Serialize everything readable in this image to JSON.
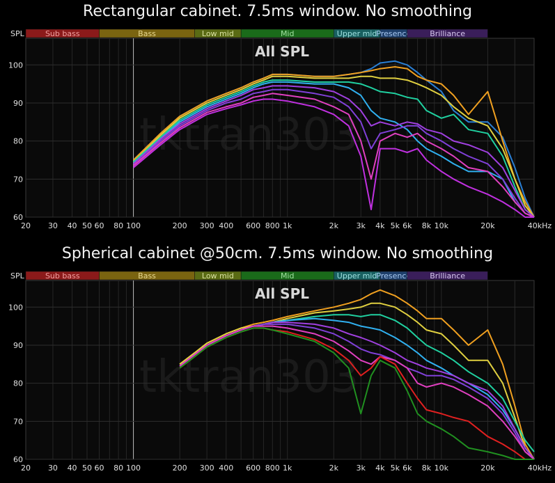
{
  "chart_data": [
    {
      "type": "line",
      "title": "Rectangular cabinet. 7.5ms window. No smoothing",
      "subtitle": "All SPL",
      "ylabel": "SPL",
      "xunit": "40kHz",
      "xscale": "log",
      "xlim": [
        20,
        40000
      ],
      "ylim": [
        60,
        107
      ],
      "grid": true,
      "watermark": "tktran303",
      "bands": [
        {
          "label": "Sub bass",
          "from": 20,
          "to": 60,
          "color": "#8b1a1a"
        },
        {
          "label": "Bass",
          "from": 60,
          "to": 250,
          "color": "#7a6410"
        },
        {
          "label": "Low mid",
          "from": 250,
          "to": 500,
          "color": "#5a6b14"
        },
        {
          "label": "Mid",
          "from": 500,
          "to": 2000,
          "color": "#1a6b1a"
        },
        {
          "label": "Upper mid",
          "from": 2000,
          "to": 4000,
          "color": "#186060"
        },
        {
          "label": "Presence",
          "from": 4000,
          "to": 6000,
          "color": "#1e3f6b"
        },
        {
          "label": "Brilliance",
          "from": 6000,
          "to": 20000,
          "color": "#3a1e5a"
        }
      ],
      "xticks": [
        {
          "v": 20,
          "t": "20"
        },
        {
          "v": 30,
          "t": "30"
        },
        {
          "v": 40,
          "t": "40"
        },
        {
          "v": 50,
          "t": "50"
        },
        {
          "v": 60,
          "t": "60"
        },
        {
          "v": 80,
          "t": "80"
        },
        {
          "v": 100,
          "t": "100"
        },
        {
          "v": 200,
          "t": "200"
        },
        {
          "v": 300,
          "t": "300"
        },
        {
          "v": 400,
          "t": "400"
        },
        {
          "v": 600,
          "t": "600"
        },
        {
          "v": 800,
          "t": "800"
        },
        {
          "v": 1000,
          "t": "1k"
        },
        {
          "v": 2000,
          "t": "2k"
        },
        {
          "v": 3000,
          "t": "3k"
        },
        {
          "v": 4000,
          "t": "4k"
        },
        {
          "v": 5000,
          "t": "5k"
        },
        {
          "v": 6000,
          "t": "6k"
        },
        {
          "v": 8000,
          "t": "8k"
        },
        {
          "v": 10000,
          "t": "10k"
        },
        {
          "v": 20000,
          "t": "20k"
        }
      ],
      "yticks": [
        60,
        70,
        80,
        90,
        100
      ],
      "x": [
        100,
        150,
        200,
        300,
        400,
        500,
        600,
        700,
        800,
        1000,
        1500,
        2000,
        2500,
        3000,
        3500,
        4000,
        5000,
        6000,
        7000,
        8000,
        10000,
        12000,
        15000,
        20000,
        25000,
        30000,
        35000,
        40000
      ],
      "series": [
        {
          "color": "#2a7fd4",
          "values": [
            75,
            82,
            86.5,
            90.5,
            92.5,
            94,
            95.5,
            96.5,
            97.5,
            97.5,
            97,
            97,
            97.5,
            98,
            99,
            100.5,
            101,
            100,
            98,
            96,
            93,
            88,
            85,
            85,
            81,
            73,
            65,
            60
          ]
        },
        {
          "color": "#f0a020",
          "values": [
            75,
            82,
            86.5,
            90.5,
            92.5,
            94,
            95.5,
            96.5,
            97.5,
            97.5,
            97,
            97,
            97.5,
            98,
            98.5,
            99,
            99.5,
            99,
            97,
            96,
            95,
            92,
            87,
            93,
            80,
            70,
            64,
            60
          ]
        },
        {
          "color": "#e0d040",
          "values": [
            74.5,
            81.5,
            86,
            90,
            92,
            93.5,
            95,
            96,
            97,
            97,
            96.5,
            96.5,
            96.5,
            97,
            97,
            96.5,
            96.5,
            96,
            95,
            94,
            92,
            89,
            86,
            84,
            78,
            70,
            63,
            60
          ]
        },
        {
          "color": "#20d0a0",
          "values": [
            74.5,
            81,
            85.5,
            89.5,
            91.5,
            93,
            94.5,
            95.5,
            96,
            96,
            95.5,
            95.5,
            95.5,
            95,
            94,
            93,
            92.5,
            91.5,
            91,
            88,
            86,
            87,
            83,
            82,
            76,
            68,
            62,
            60
          ]
        },
        {
          "color": "#30b0f0",
          "values": [
            74,
            80.5,
            85,
            89,
            91,
            92.5,
            94,
            95,
            95.5,
            95.5,
            95,
            95,
            94,
            92,
            88,
            86,
            85,
            83,
            80,
            78,
            76,
            74,
            72,
            72,
            70,
            64,
            61,
            60
          ]
        },
        {
          "color": "#a040e0",
          "values": [
            74,
            80.5,
            84.5,
            88.5,
            90.5,
            92,
            93.5,
            94,
            94.5,
            94.5,
            94,
            93,
            91,
            88,
            84,
            85,
            84,
            85,
            84.5,
            83,
            82,
            80,
            79,
            77,
            73,
            67,
            62,
            60
          ]
        },
        {
          "color": "#8040d8",
          "values": [
            73.5,
            80,
            84,
            88,
            90,
            91,
            92.5,
            93,
            93.5,
            93.5,
            92.5,
            91.5,
            89,
            85,
            78,
            82,
            83,
            84,
            84,
            82,
            80,
            78,
            76,
            74,
            70,
            65,
            61,
            60
          ]
        },
        {
          "color": "#e040c0",
          "values": [
            73.5,
            79.5,
            83.5,
            87.5,
            89,
            90,
            91.5,
            92,
            92.5,
            92,
            91,
            89,
            87,
            80,
            70,
            80,
            82,
            81,
            82,
            80,
            78,
            76,
            73,
            72,
            68,
            64,
            61,
            60
          ]
        },
        {
          "color": "#c030e0",
          "values": [
            73,
            79,
            83,
            87,
            88.5,
            89.5,
            90.5,
            91,
            91,
            90.5,
            89,
            87,
            84,
            76,
            62,
            78,
            78,
            77,
            78,
            75,
            72,
            70,
            68,
            66,
            64,
            62,
            60,
            60
          ]
        }
      ]
    },
    {
      "type": "line",
      "title": "Spherical cabinet @50cm. 7.5ms window. No smoothing",
      "subtitle": "All SPL",
      "ylabel": "SPL",
      "xunit": "40kHz",
      "xscale": "log",
      "xlim": [
        20,
        40000
      ],
      "ylim": [
        60,
        107
      ],
      "grid": true,
      "watermark": "tktran303",
      "bands": [
        {
          "label": "Sub bass",
          "from": 20,
          "to": 60,
          "color": "#8b1a1a"
        },
        {
          "label": "Bass",
          "from": 60,
          "to": 250,
          "color": "#7a6410"
        },
        {
          "label": "Low mid",
          "from": 250,
          "to": 500,
          "color": "#5a6b14"
        },
        {
          "label": "Mid",
          "from": 500,
          "to": 2000,
          "color": "#1a6b1a"
        },
        {
          "label": "Upper mid",
          "from": 2000,
          "to": 4000,
          "color": "#186060"
        },
        {
          "label": "Presence",
          "from": 4000,
          "to": 6000,
          "color": "#1e3f6b"
        },
        {
          "label": "Brilliance",
          "from": 6000,
          "to": 20000,
          "color": "#3a1e5a"
        }
      ],
      "xticks": [
        {
          "v": 20,
          "t": "20"
        },
        {
          "v": 30,
          "t": "30"
        },
        {
          "v": 40,
          "t": "40"
        },
        {
          "v": 50,
          "t": "50"
        },
        {
          "v": 60,
          "t": "60"
        },
        {
          "v": 80,
          "t": "80"
        },
        {
          "v": 100,
          "t": "100"
        },
        {
          "v": 200,
          "t": "200"
        },
        {
          "v": 300,
          "t": "300"
        },
        {
          "v": 400,
          "t": "400"
        },
        {
          "v": 600,
          "t": "600"
        },
        {
          "v": 800,
          "t": "800"
        },
        {
          "v": 1000,
          "t": "1k"
        },
        {
          "v": 2000,
          "t": "2k"
        },
        {
          "v": 3000,
          "t": "3k"
        },
        {
          "v": 4000,
          "t": "4k"
        },
        {
          "v": 5000,
          "t": "5k"
        },
        {
          "v": 6000,
          "t": "6k"
        },
        {
          "v": 8000,
          "t": "8k"
        },
        {
          "v": 10000,
          "t": "10k"
        },
        {
          "v": 20000,
          "t": "20k"
        }
      ],
      "yticks": [
        60,
        70,
        80,
        90,
        100
      ],
      "x": [
        200,
        250,
        300,
        400,
        500,
        600,
        700,
        800,
        1000,
        1500,
        2000,
        2500,
        3000,
        3500,
        4000,
        5000,
        6000,
        7000,
        8000,
        10000,
        12000,
        15000,
        20000,
        25000,
        30000,
        35000,
        40000
      ],
      "series": [
        {
          "color": "#f0a020",
          "values": [
            85,
            88,
            90.5,
            93,
            94.5,
            95.5,
            96,
            96.5,
            97.5,
            99,
            100,
            101,
            102,
            103.5,
            104.5,
            103,
            101,
            99,
            97,
            97,
            94,
            90,
            94,
            85,
            74,
            64,
            60
          ]
        },
        {
          "color": "#e0d040",
          "values": [
            85,
            88,
            90.5,
            93,
            94.5,
            95,
            95.5,
            96,
            97,
            98.5,
            99,
            99.5,
            100,
            101,
            101,
            100,
            98,
            96,
            94,
            93,
            90,
            86,
            86,
            80,
            71,
            63,
            60
          ]
        },
        {
          "color": "#20d0a0",
          "values": [
            84.5,
            87.5,
            90,
            92.5,
            94,
            95,
            95.5,
            96,
            96.5,
            97.5,
            98,
            98,
            97.5,
            98,
            98,
            96.5,
            94.5,
            92,
            90,
            88,
            86,
            83,
            80,
            76,
            70,
            65,
            62
          ]
        },
        {
          "color": "#30b0f0",
          "values": [
            84.5,
            87.5,
            90,
            92.5,
            94,
            95,
            95.5,
            96,
            96.5,
            97,
            96.5,
            96,
            95,
            94.5,
            94,
            92,
            90,
            88,
            86,
            84,
            82,
            80,
            77,
            73,
            68,
            63,
            60
          ]
        },
        {
          "color": "#a040e0",
          "values": [
            84.5,
            87.5,
            90,
            92.5,
            94,
            95,
            95.5,
            96,
            96,
            95.5,
            94.5,
            93,
            92,
            91,
            90,
            88,
            86,
            85,
            84,
            83,
            82,
            80,
            78,
            74,
            68,
            63,
            60
          ]
        },
        {
          "color": "#8040d8",
          "values": [
            84.5,
            87.5,
            90,
            92.5,
            94,
            95,
            95.5,
            95.5,
            95.5,
            94.5,
            93,
            91,
            89,
            88,
            87.5,
            86,
            84,
            83,
            82,
            82,
            81,
            79,
            76,
            72,
            67,
            62,
            60
          ]
        },
        {
          "color": "#e040c0",
          "values": [
            84.5,
            87.5,
            90,
            92.5,
            94,
            95,
            95,
            95,
            94.5,
            93,
            91,
            88.5,
            86,
            85,
            87,
            86,
            84,
            80,
            79,
            80,
            79,
            77,
            74,
            70,
            66,
            62,
            60
          ]
        },
        {
          "color": "#e02020",
          "values": [
            84,
            87,
            89.5,
            92,
            93.5,
            94.5,
            94.5,
            94,
            93.5,
            91.5,
            89,
            86,
            82,
            84,
            87,
            85,
            80,
            76,
            73,
            72,
            71,
            70,
            66,
            64,
            62,
            60,
            60
          ]
        },
        {
          "color": "#209020",
          "values": [
            84,
            87,
            89.5,
            92,
            93.5,
            94.5,
            94.5,
            94,
            93,
            91,
            88,
            84,
            72,
            82,
            86,
            84,
            78,
            72,
            70,
            68,
            66,
            63,
            62,
            61,
            60,
            60,
            60
          ]
        }
      ]
    }
  ]
}
